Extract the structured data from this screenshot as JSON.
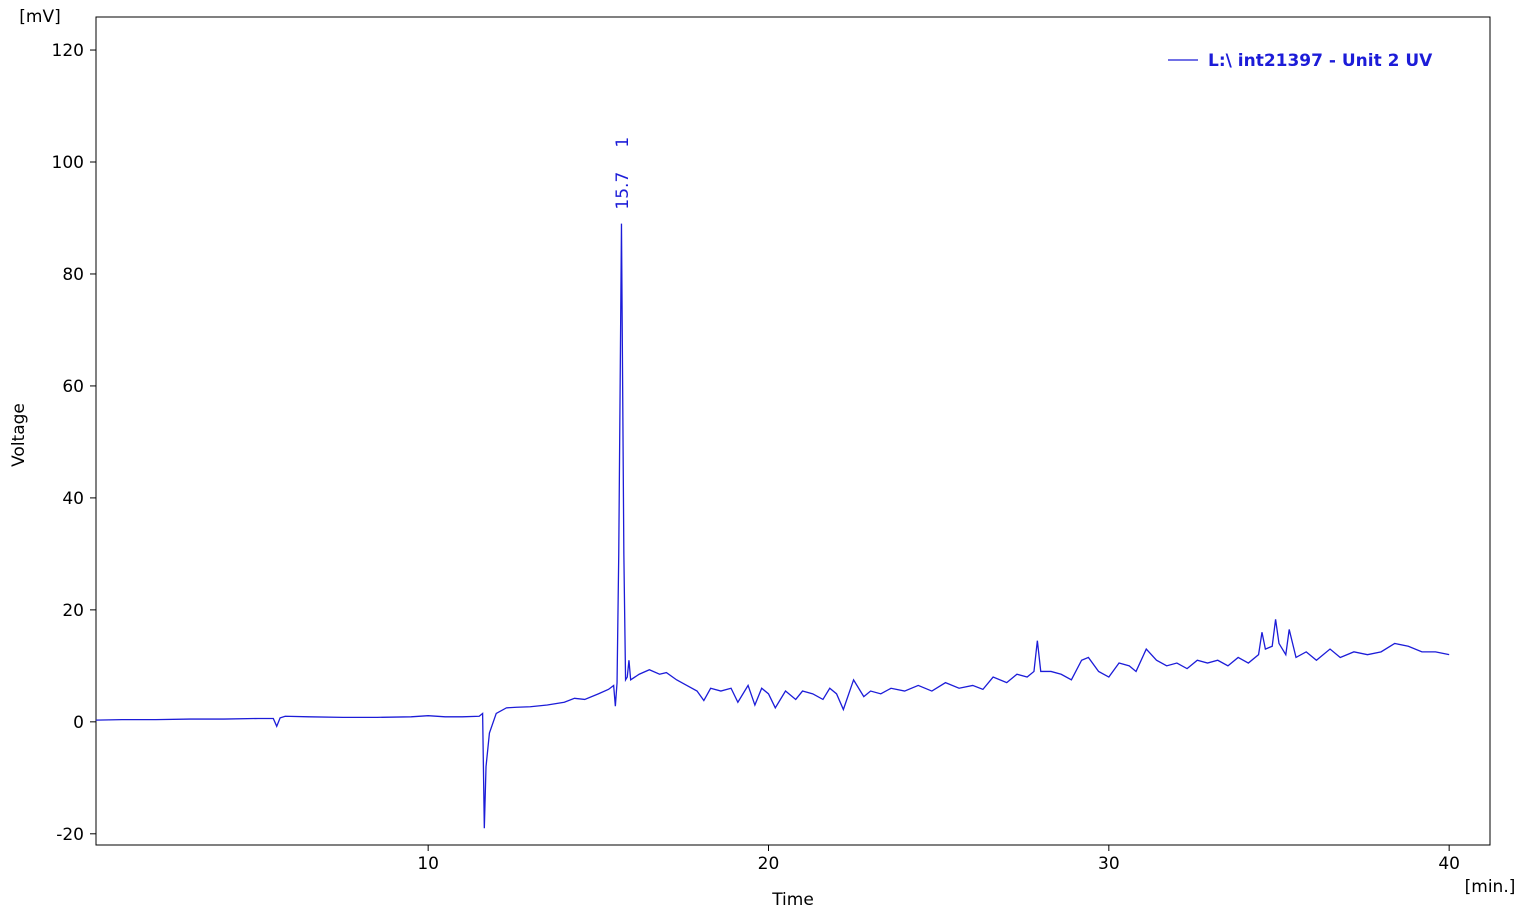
{
  "chart_data": {
    "type": "line",
    "x_label": "Time",
    "y_label": "Voltage",
    "x_unit": "[min.]",
    "y_unit": "[mV]",
    "xlim": [
      0.24,
      41.2
    ],
    "ylim": [
      -22,
      125.9
    ],
    "xticks": [
      10,
      20,
      30,
      40
    ],
    "yticks": [
      -20,
      0,
      20,
      40,
      60,
      80,
      100,
      120
    ],
    "legend": "top-right",
    "peaks": [
      {
        "time": 15.7,
        "number": 1
      }
    ],
    "series": [
      {
        "name": "L:\\ int21397 - Unit 2 UV",
        "color": "#1c1cd8",
        "x": [
          0.24,
          1,
          2,
          3,
          4,
          5,
          5.45,
          5.55,
          5.65,
          5.8,
          6.5,
          7.5,
          8.5,
          9.5,
          10,
          10.5,
          11,
          11.5,
          11.6,
          11.65,
          11.7,
          11.8,
          12,
          12.3,
          12.6,
          13,
          13.5,
          14,
          14.3,
          14.6,
          15,
          15.3,
          15.45,
          15.5,
          15.55,
          15.6,
          15.68,
          15.75,
          15.8,
          15.85,
          15.9,
          15.95,
          16.2,
          16.5,
          16.8,
          17,
          17.3,
          17.6,
          17.9,
          18.1,
          18.3,
          18.6,
          18.9,
          19.1,
          19.4,
          19.6,
          19.8,
          20,
          20.2,
          20.5,
          20.8,
          21,
          21.3,
          21.6,
          21.8,
          22,
          22.2,
          22.5,
          22.8,
          23,
          23.3,
          23.6,
          24,
          24.4,
          24.8,
          25.2,
          25.6,
          26,
          26.3,
          26.6,
          27,
          27.3,
          27.6,
          27.8,
          27.9,
          28,
          28.3,
          28.6,
          28.9,
          29.2,
          29.4,
          29.7,
          30,
          30.3,
          30.6,
          30.8,
          31.1,
          31.4,
          31.7,
          32,
          32.3,
          32.6,
          32.9,
          33.2,
          33.5,
          33.8,
          34.1,
          34.4,
          34.5,
          34.6,
          34.8,
          34.9,
          35,
          35.2,
          35.3,
          35.5,
          35.8,
          36.1,
          36.5,
          36.8,
          37.2,
          37.6,
          38,
          38.4,
          38.8,
          39.2,
          39.6,
          40
        ],
        "values": [
          0.3,
          0.4,
          0.4,
          0.5,
          0.5,
          0.6,
          0.6,
          -0.8,
          0.7,
          1.0,
          0.9,
          0.8,
          0.8,
          0.9,
          1.1,
          0.9,
          0.9,
          1.0,
          1.5,
          -19,
          -8,
          -2,
          1.5,
          2.5,
          2.6,
          2.7,
          3.0,
          3.5,
          4.2,
          4.0,
          5.0,
          5.8,
          6.5,
          2.8,
          7,
          30,
          89,
          30,
          7.5,
          8,
          11,
          7.5,
          8.5,
          9.3,
          8.5,
          8.8,
          7.5,
          6.5,
          5.5,
          3.8,
          6.0,
          5.5,
          6.0,
          3.5,
          6.5,
          3.0,
          6.0,
          5.0,
          2.5,
          5.5,
          4.0,
          5.5,
          5.0,
          4.0,
          6.0,
          5.0,
          2.2,
          7.5,
          4.5,
          5.5,
          5.0,
          6.0,
          5.5,
          6.5,
          5.5,
          7.0,
          6.0,
          6.5,
          5.8,
          8.0,
          7.0,
          8.5,
          8.0,
          9.0,
          14.5,
          9.0,
          9.0,
          8.5,
          7.5,
          11.0,
          11.5,
          9.0,
          8.0,
          10.5,
          10.0,
          9.0,
          13.0,
          11.0,
          10.0,
          10.5,
          9.5,
          11.0,
          10.5,
          11.0,
          10.0,
          11.5,
          10.5,
          12.0,
          16,
          13,
          13.5,
          18.3,
          14,
          12,
          16.5,
          11.5,
          12.5,
          11.0,
          13.0,
          11.5,
          12.5,
          12.0,
          12.5,
          14.0,
          13.5,
          12.5,
          12.5,
          12.0
        ]
      }
    ]
  }
}
